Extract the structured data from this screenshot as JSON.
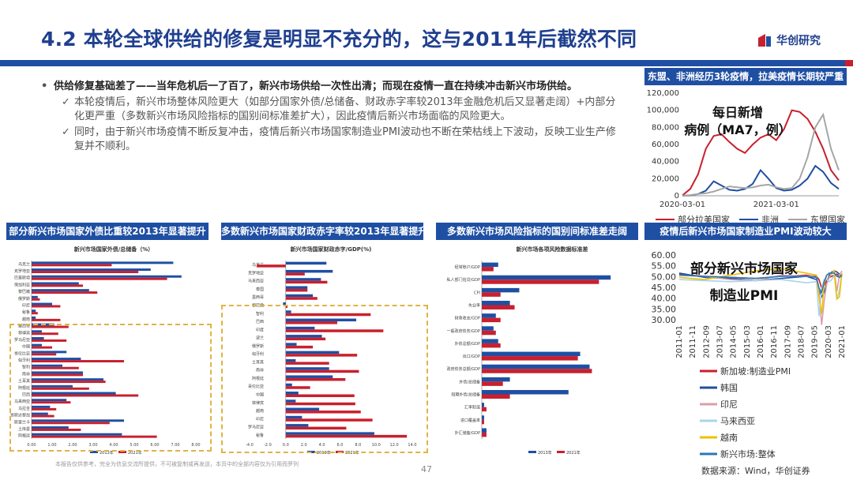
{
  "header": {
    "title": "4.2 本轮全球供给的修复是明显不充分的，这与2011年后截然不同",
    "logo_text": "华创研究",
    "colors": {
      "brand_blue": "#1f4fa3",
      "brand_red": "#c8202e"
    }
  },
  "bullets": {
    "main": "供给修复基础差了——当年危机后一了百了，新兴市场供给一次性出清；而现在疫情一直在持续冲击新兴市场供给。",
    "sub1": "本轮疫情后，新兴市场整体风险更大（如部分国家外债/总储备、财政赤字率较2013年金融危机后又显著走阔）+内部分化更严重（多数新兴市场风险指标的国别间标准差扩大），因此疫情后新兴市场面临的风险更大。",
    "sub2": "同时，由于新兴市场疫情不断反复冲击，疫情后新兴市场国家制造业PMI波动也不断在荣枯线上下波动，反映工业生产修复并不顺利。"
  },
  "footer": {
    "note": "本报告仅供参考，完全为信息交流所提供，不可被复制或再发送，本页中的全部内容仅为引用而罗列",
    "page": "47",
    "source": "数据来源：Wind，华创证券"
  },
  "chart_data": [
    {
      "id": "covid",
      "type": "line",
      "title": "东盟、非洲经历3轮疫情，拉美疫情长期较严重",
      "annotation": "每日新增病例（MA7，例）",
      "x_ticks": [
        "2020-03-01",
        "2021-03-01"
      ],
      "ylim": [
        0,
        120000
      ],
      "y_ticks": [
        "0",
        "20,000",
        "40,000",
        "60,000",
        "80,000",
        "100,000",
        "120,000"
      ],
      "y_tick_values": [
        0,
        20000,
        40000,
        60000,
        80000,
        100000,
        120000
      ],
      "x_month_range": [
        0,
        20
      ],
      "series": [
        {
          "name": "部分拉美国家",
          "color": "#c8202e",
          "months": [
            0,
            1,
            2,
            3,
            4,
            5,
            6,
            7,
            8,
            9,
            10,
            11,
            12,
            13,
            14,
            15,
            16,
            17,
            18,
            19,
            20
          ],
          "values": [
            500,
            8000,
            25000,
            55000,
            70000,
            72000,
            63000,
            55000,
            50000,
            60000,
            68000,
            72000,
            65000,
            78000,
            100000,
            98000,
            90000,
            75000,
            55000,
            30000,
            18000
          ]
        },
        {
          "name": "非洲",
          "color": "#1f4fa3",
          "months": [
            0,
            1,
            2,
            3,
            4,
            5,
            6,
            7,
            8,
            9,
            10,
            11,
            12,
            13,
            14,
            15,
            16,
            17,
            18,
            19,
            20
          ],
          "values": [
            100,
            500,
            2000,
            6000,
            17000,
            12000,
            7000,
            6000,
            8000,
            14000,
            30000,
            20000,
            9000,
            6000,
            7000,
            12000,
            20000,
            35000,
            28000,
            15000,
            8000
          ]
        },
        {
          "name": "东盟国家",
          "color": "#a6a6a6",
          "months": [
            0,
            1,
            2,
            3,
            4,
            5,
            6,
            7,
            8,
            9,
            10,
            11,
            12,
            13,
            14,
            15,
            16,
            17,
            18,
            19,
            20
          ],
          "values": [
            200,
            800,
            2000,
            3000,
            5000,
            8000,
            11000,
            10000,
            9000,
            10000,
            12000,
            13000,
            10000,
            8000,
            9000,
            20000,
            45000,
            80000,
            95000,
            55000,
            30000
          ]
        }
      ]
    },
    {
      "id": "debt",
      "type": "bar",
      "title": "部分新兴市场国家外债比重较2013年显著提升",
      "subtitle": "新兴市场国家外债/总储备（%）",
      "categories": [
        "乌克兰",
        "克罗地亚",
        "巴基斯坦",
        "保加利亚",
        "黎巴嫩",
        "俄罗斯",
        "印尼",
        "秘鲁",
        "越南",
        "墨西哥",
        "菲律宾",
        "罗马尼亚",
        "中国",
        "哥伦比亚",
        "匈牙利",
        "智利",
        "南非",
        "土耳其",
        "阿根廷",
        "巴西",
        "马来西亚",
        "乌拉圭",
        "哥斯达黎加",
        "斯里兰卡",
        "土库曼",
        "阿根廷"
      ],
      "xlim": [
        0,
        8
      ],
      "x_ticks": [
        "0.00",
        "1.00",
        "2.00",
        "3.00",
        "4.00",
        "5.00",
        "6.00",
        "7.00",
        "8.00"
      ],
      "series": [
        {
          "name": "2013年",
          "color": "#1f4fa3",
          "values": [
            6.9,
            5.8,
            7.3,
            2.3,
            2.8,
            0.3,
            1.0,
            0.2,
            0.2,
            1.1,
            0.5,
            0.6,
            0.5,
            1.7,
            2.4,
            1.5,
            2.5,
            3.5,
            2.0,
            4.1,
            1.7,
            0.9,
            0.8,
            4.5,
            1.8,
            4.4
          ]
        },
        {
          "name": "2021年",
          "color": "#c8202e",
          "values": [
            3.9,
            5.2,
            6.6,
            2.5,
            3.2,
            0.4,
            1.4,
            0.3,
            1.4,
            1.8,
            1.3,
            1.7,
            1.0,
            1.2,
            4.5,
            2.3,
            2.5,
            3.6,
            2.8,
            5.2,
            1.9,
            1.2,
            1.1,
            3.8,
            2.4,
            6.1
          ]
        }
      ]
    },
    {
      "id": "deficit",
      "type": "bar",
      "title": "多数新兴市场国家财政赤字率较2013年显著提升",
      "subtitle": "新兴市场国家财政赤字/GDP(%)",
      "categories": [
        "乌克兰",
        "克罗地亚",
        "马来西亚",
        "泰国",
        "墨西哥",
        "黎巴嫩",
        "智利",
        "巴西",
        "印度",
        "波兰",
        "俄罗斯",
        "匈牙利",
        "土耳其",
        "南非",
        "阿根廷",
        "哥伦比亚",
        "中国",
        "菲律宾",
        "越南",
        "印尼",
        "罗马尼亚",
        "秘鲁"
      ],
      "xlim": [
        -4,
        14
      ],
      "x_ticks": [
        "-4.0",
        "-2.0",
        "0.0",
        "2.0",
        "4.0",
        "6.0",
        "8.0",
        "10.0",
        "12.0",
        "14.0"
      ],
      "series": [
        {
          "name": "2013年",
          "color": "#1f4fa3",
          "values": [
            4.5,
            5.2,
            3.9,
            2.4,
            3.0,
            -0.3,
            0.6,
            7.8,
            3.2,
            4.0,
            1.2,
            5.9,
            1.1,
            4.8,
            5.2,
            0.7,
            1.4,
            1.1,
            3.7,
            1.8,
            2.5,
            9.8
          ]
        },
        {
          "name": "2021年",
          "color": "#c8202e",
          "values": [
            -3.2,
            2.1,
            4.6,
            2.4,
            3.5,
            0.2,
            9.4,
            5.7,
            10.8,
            4.4,
            3.0,
            7.9,
            4.8,
            8.1,
            6.6,
            2.7,
            7.6,
            7.7,
            8.3,
            9.6,
            6.7,
            13.4
          ]
        }
      ]
    },
    {
      "id": "stdev",
      "type": "bar",
      "title": "多数新兴市场风险指标的国别间标准差走阔",
      "subtitle": "新兴市场各项风险数据标准差",
      "categories": [
        "经常账户/GDP",
        "私人部门信贷/GDP",
        "CPI",
        "失业率",
        "财政收支/GDP",
        "一般政府债务/GDP",
        "外债总额/GDP",
        "出口/GDP",
        "政府债务总额/GDP",
        "外债/总储备",
        "短期外债/总储备",
        "汇率贬值",
        "进口覆盖率",
        "外汇储备/GDP"
      ],
      "xlim": [
        0,
        60
      ],
      "series": [
        {
          "name": "2013年",
          "color": "#1f4fa3",
          "values": [
            7,
            55,
            16,
            12,
            6,
            5,
            7,
            42,
            46,
            12,
            37,
            1,
            1,
            2
          ]
        },
        {
          "name": "2021年",
          "color": "#c8202e",
          "values": [
            5,
            50,
            8,
            14,
            8,
            6,
            8,
            41,
            47,
            9,
            12,
            2,
            1,
            2
          ]
        }
      ]
    },
    {
      "id": "pmi",
      "type": "line",
      "title": "疫情后新兴市场国家制造业PMI波动较大",
      "annotation": "部分新兴市场国家制造业PMI",
      "ylim": [
        30,
        60
      ],
      "y_ticks": [
        "30.00",
        "35.00",
        "40.00",
        "45.00",
        "50.00",
        "55.00",
        "60.00"
      ],
      "y_tick_values": [
        30,
        35,
        40,
        45,
        50,
        55,
        60
      ],
      "x_ticks": [
        "2011-01",
        "2011-11",
        "2012-09",
        "2013-07",
        "2014-05",
        "2015-03",
        "2016-01",
        "2016-11",
        "2017-09",
        "2018-07",
        "2019-05",
        "2020-03",
        "2021-01"
      ],
      "x_range": [
        0,
        128
      ],
      "series": [
        {
          "name": "新加坡:制造业PMI",
          "color": "#c8202e",
          "x": [
            0,
            20,
            40,
            60,
            80,
            100,
            108,
            110,
            112,
            114,
            116,
            118,
            120,
            122,
            124,
            126,
            128
          ],
          "values": [
            51.5,
            50.5,
            50,
            49.5,
            50.5,
            51,
            50.5,
            49,
            45,
            46,
            48.5,
            50,
            50.5,
            51,
            51.5,
            50.5,
            50
          ]
        },
        {
          "name": "韩国",
          "color": "#1f4fa3",
          "x": [
            0,
            20,
            40,
            60,
            80,
            100,
            108,
            110,
            112,
            114,
            116,
            118,
            120,
            122,
            124,
            126,
            128
          ],
          "values": [
            52,
            50,
            49.5,
            48.5,
            49.5,
            50.5,
            49,
            44,
            41,
            43,
            47,
            51,
            52.5,
            53,
            52.5,
            51.5,
            50.5
          ]
        },
        {
          "name": "印尼",
          "color": "#d9a0aa",
          "x": [
            0,
            20,
            40,
            60,
            80,
            100,
            108,
            110,
            112,
            114,
            116,
            118,
            120,
            122,
            124,
            126,
            128
          ],
          "values": [
            51,
            50.5,
            49,
            48.5,
            51,
            50.5,
            51,
            43,
            28,
            39,
            47,
            50,
            52,
            53,
            43.5,
            51,
            53
          ]
        },
        {
          "name": "马来西亚",
          "color": "#a8d4ec",
          "x": [
            0,
            20,
            40,
            60,
            80,
            100,
            108,
            110,
            112,
            114,
            116,
            118,
            120,
            122,
            124,
            126,
            128
          ],
          "values": [
            49,
            48.5,
            48,
            48.5,
            49,
            47.5,
            48,
            32,
            45,
            49,
            49,
            48,
            49,
            51,
            40,
            44,
            52
          ]
        },
        {
          "name": "越南",
          "color": "#f0c000",
          "x": [
            0,
            20,
            40,
            60,
            80,
            100,
            108,
            110,
            112,
            114,
            116,
            118,
            120,
            122,
            124,
            126,
            128
          ],
          "values": [
            50,
            49,
            51,
            53,
            54,
            52,
            51,
            41,
            33,
            47,
            51,
            52,
            51.5,
            53,
            40,
            41,
            52
          ]
        },
        {
          "name": "新兴市场:整体",
          "color": "#2a78b5",
          "x": [
            0,
            20,
            40,
            60,
            80,
            100,
            108,
            110,
            112,
            114,
            116,
            118,
            120,
            122,
            124,
            126,
            128
          ],
          "values": [
            51,
            50.5,
            50,
            49.5,
            50.5,
            50.5,
            50,
            45,
            43,
            48,
            51,
            52,
            52,
            52,
            50.5,
            50,
            51
          ]
        }
      ]
    }
  ]
}
